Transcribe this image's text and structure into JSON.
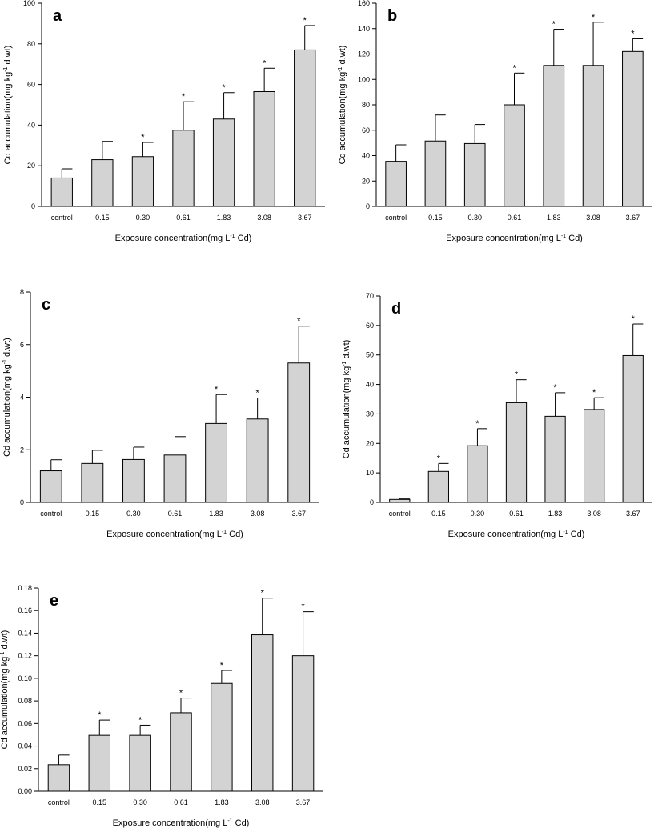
{
  "bar_color": "#d3d3d3",
  "xlabel_prefix": "Exposure concentration(mg L",
  "xlabel_sup": "-1",
  "xlabel_suffix": " Cd)",
  "ylabel_prefix": "Cd accumulation(mg kg",
  "ylabel_sup": "-1",
  "ylabel_suffix": " d.wt)",
  "chart_data": [
    {
      "panel": "a",
      "type": "bar",
      "categories": [
        "control",
        "0.15",
        "0.30",
        "0.61",
        "1.83",
        "3.08",
        "3.67"
      ],
      "values": [
        14,
        23,
        24.5,
        37.5,
        43,
        56.5,
        77
      ],
      "error_plus": [
        4.5,
        9,
        7,
        14,
        13,
        11.5,
        12
      ],
      "significant": [
        false,
        false,
        true,
        true,
        true,
        true,
        true
      ],
      "ylim": [
        0,
        100
      ],
      "yticks": [
        "0",
        "20",
        "40",
        "60",
        "80",
        "100"
      ],
      "xlabel": "Exposure concentration(mg L-1 Cd)",
      "ylabel": "Cd accumulation(mg kg-1 d.wt)"
    },
    {
      "panel": "b",
      "type": "bar",
      "categories": [
        "control",
        "0.15",
        "0.30",
        "0.61",
        "1.83",
        "3.08",
        "3.67"
      ],
      "values": [
        35.5,
        51.5,
        49.5,
        80,
        111,
        111,
        122
      ],
      "error_plus": [
        13,
        20.5,
        15,
        25,
        28.5,
        34,
        10
      ],
      "significant": [
        false,
        false,
        false,
        true,
        true,
        true,
        true
      ],
      "ylim": [
        0,
        160
      ],
      "yticks": [
        "0",
        "20",
        "40",
        "60",
        "80",
        "100",
        "120",
        "140",
        "160"
      ],
      "xlabel": "Exposure concentration(mg L-1 Cd)",
      "ylabel": "Cd accumulation(mg kg-1 d.wt)"
    },
    {
      "panel": "c",
      "type": "bar",
      "categories": [
        "control",
        "0.15",
        "0.30",
        "0.61",
        "1.83",
        "3.08",
        "3.67"
      ],
      "values": [
        1.2,
        1.48,
        1.63,
        1.8,
        3.0,
        3.17,
        5.3
      ],
      "error_plus": [
        0.42,
        0.5,
        0.47,
        0.7,
        1.1,
        0.8,
        1.4
      ],
      "significant": [
        false,
        false,
        false,
        false,
        true,
        true,
        true
      ],
      "ylim": [
        0,
        8
      ],
      "yticks": [
        "0",
        "2",
        "4",
        "6",
        "8"
      ],
      "xlabel": "Exposure concentration(mg L-1 Cd)",
      "ylabel": "Cd accumulation(mg kg-1 d.wt)"
    },
    {
      "panel": "d",
      "type": "bar",
      "categories": [
        "control",
        "0.15",
        "0.30",
        "0.61",
        "1.83",
        "3.08",
        "3.67"
      ],
      "values": [
        1.0,
        10.5,
        19.2,
        33.8,
        29.2,
        31.5,
        49.8
      ],
      "error_plus": [
        0.3,
        2.7,
        5.8,
        7.8,
        8.0,
        4.0,
        10.7
      ],
      "significant": [
        false,
        true,
        true,
        true,
        true,
        true,
        true
      ],
      "ylim": [
        0,
        70
      ],
      "yticks": [
        "0",
        "10",
        "20",
        "30",
        "40",
        "50",
        "60",
        "70"
      ],
      "xlabel": "Exposure concentration(mg L-1 Cd)",
      "ylabel": "Cd accumulation(mg kg-1 d.wt)"
    },
    {
      "panel": "e",
      "type": "bar",
      "categories": [
        "control",
        "0.15",
        "0.30",
        "0.61",
        "1.83",
        "3.08",
        "3.67"
      ],
      "values": [
        0.0235,
        0.0495,
        0.0495,
        0.0695,
        0.0955,
        0.1385,
        0.12
      ],
      "error_plus": [
        0.0085,
        0.0135,
        0.009,
        0.013,
        0.0115,
        0.0325,
        0.039
      ],
      "significant": [
        false,
        true,
        true,
        true,
        true,
        true,
        true
      ],
      "ylim": [
        0,
        0.18
      ],
      "yticks": [
        "0.00",
        "0.02",
        "0.04",
        "0.06",
        "0.08",
        "0.10",
        "0.12",
        "0.14",
        "0.16",
        "0.18"
      ],
      "xlabel": "Exposure concentration(mg L-1 Cd)",
      "ylabel": "Cd accumulation(mg kg-1 d.wt)"
    }
  ]
}
